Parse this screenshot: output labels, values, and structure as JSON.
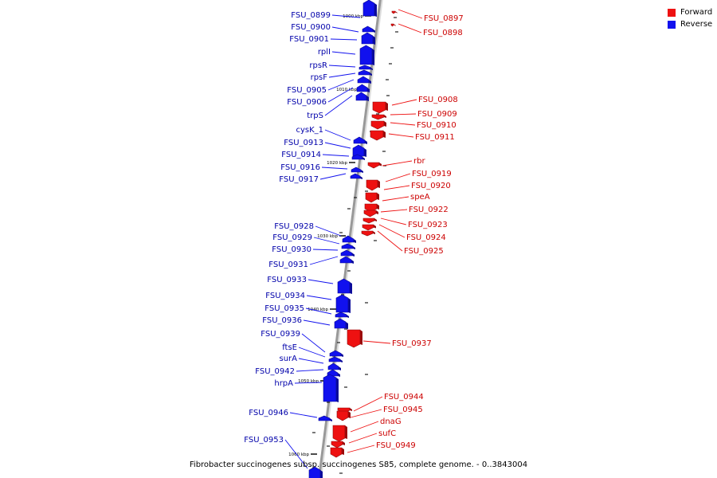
{
  "colors": {
    "forward": "#ee1111",
    "reverse": "#1111ee",
    "backbone": "#999999",
    "label_forward": "#cc0000",
    "label_reverse": "#0000aa"
  },
  "legend": [
    {
      "label": "Forward",
      "strand": "forward"
    },
    {
      "label": "Reverse",
      "strand": "reverse"
    }
  ],
  "caption": "Fibrobacter succinogenes subsp. succinogenes S85, complete genome. - 0..3843004",
  "ticks": [
    "1000 kbp",
    "1010 kbp",
    "1020 kbp",
    "1030 kbp",
    "1040 kbp",
    "1050 kbp",
    "1060 kbp"
  ],
  "genes": [
    {
      "name": "FSU_0899",
      "strand": "reverse"
    },
    {
      "name": "FSU_0897",
      "strand": "forward"
    },
    {
      "name": "FSU_0898",
      "strand": "forward"
    },
    {
      "name": "FSU_0900",
      "strand": "reverse"
    },
    {
      "name": "FSU_0901",
      "strand": "reverse"
    },
    {
      "name": "rplI",
      "strand": "reverse"
    },
    {
      "name": "rpsR",
      "strand": "reverse"
    },
    {
      "name": "rpsF",
      "strand": "reverse"
    },
    {
      "name": "FSU_0905",
      "strand": "reverse"
    },
    {
      "name": "FSU_0906",
      "strand": "reverse"
    },
    {
      "name": "trpS",
      "strand": "reverse"
    },
    {
      "name": "FSU_0908",
      "strand": "forward"
    },
    {
      "name": "FSU_0909",
      "strand": "forward"
    },
    {
      "name": "FSU_0910",
      "strand": "forward"
    },
    {
      "name": "FSU_0911",
      "strand": "forward"
    },
    {
      "name": "cysK_1",
      "strand": "reverse"
    },
    {
      "name": "FSU_0913",
      "strand": "reverse"
    },
    {
      "name": "FSU_0914",
      "strand": "reverse"
    },
    {
      "name": "rbr",
      "strand": "forward"
    },
    {
      "name": "FSU_0916",
      "strand": "reverse"
    },
    {
      "name": "FSU_0917",
      "strand": "reverse"
    },
    {
      "name": "FSU_0919",
      "strand": "forward"
    },
    {
      "name": "FSU_0920",
      "strand": "forward"
    },
    {
      "name": "speA",
      "strand": "forward"
    },
    {
      "name": "FSU_0922",
      "strand": "forward"
    },
    {
      "name": "FSU_0923",
      "strand": "forward"
    },
    {
      "name": "FSU_0924",
      "strand": "forward"
    },
    {
      "name": "FSU_0925",
      "strand": "forward"
    },
    {
      "name": "FSU_0928",
      "strand": "reverse"
    },
    {
      "name": "FSU_0929",
      "strand": "reverse"
    },
    {
      "name": "FSU_0930",
      "strand": "reverse"
    },
    {
      "name": "FSU_0931",
      "strand": "reverse"
    },
    {
      "name": "FSU_0933",
      "strand": "reverse"
    },
    {
      "name": "FSU_0934",
      "strand": "reverse"
    },
    {
      "name": "FSU_0935",
      "strand": "reverse"
    },
    {
      "name": "FSU_0936",
      "strand": "reverse"
    },
    {
      "name": "FSU_0937",
      "strand": "forward"
    },
    {
      "name": "FSU_0939",
      "strand": "reverse"
    },
    {
      "name": "ftsE",
      "strand": "reverse"
    },
    {
      "name": "surA",
      "strand": "reverse"
    },
    {
      "name": "FSU_0942",
      "strand": "reverse"
    },
    {
      "name": "hrpA",
      "strand": "reverse"
    },
    {
      "name": "FSU_0944",
      "strand": "forward"
    },
    {
      "name": "FSU_0945",
      "strand": "forward"
    },
    {
      "name": "dnaG",
      "strand": "forward"
    },
    {
      "name": "FSU_0946",
      "strand": "reverse"
    },
    {
      "name": "sufC",
      "strand": "forward"
    },
    {
      "name": "FSU_0949",
      "strand": "forward"
    },
    {
      "name": "FSU_0953",
      "strand": "reverse"
    }
  ]
}
